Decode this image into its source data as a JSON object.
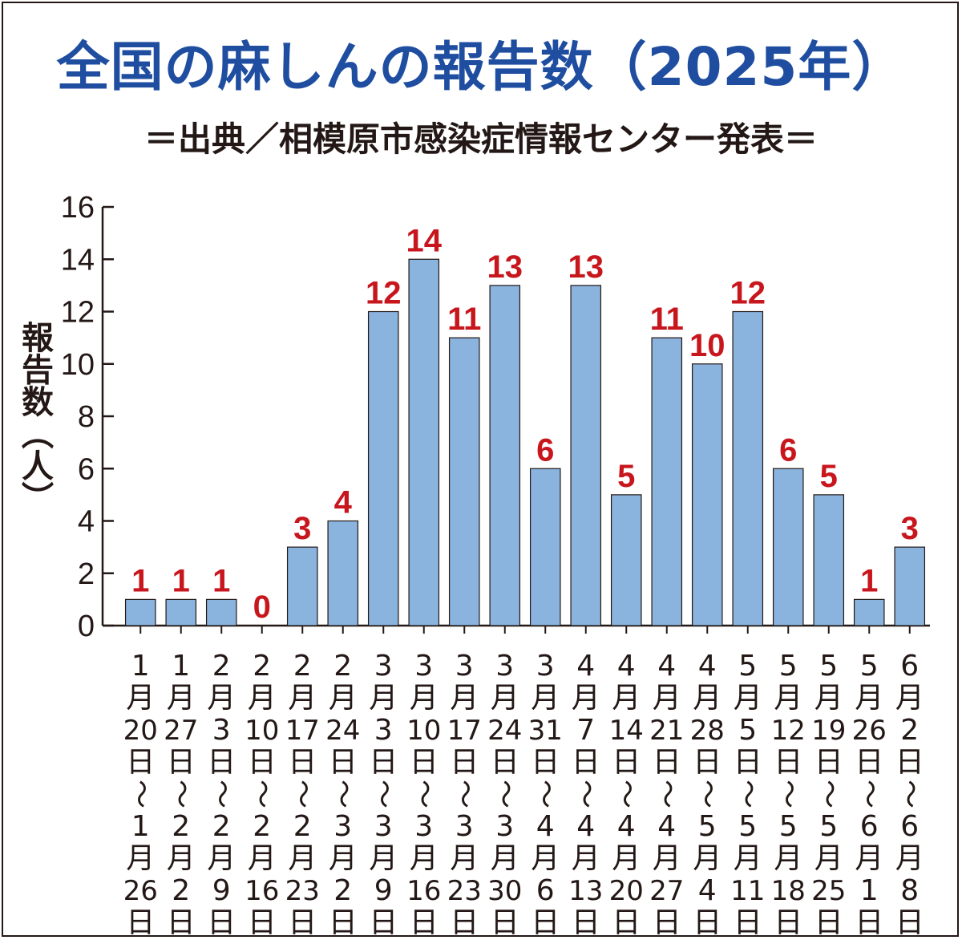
{
  "chart_data": {
    "type": "bar",
    "title": "全国の麻しんの報告数（2025年）",
    "subtitle": "＝出典／相模原市感染症情報センター発表＝",
    "ylabel": "報告数（人）",
    "xlabel": "",
    "ylim": [
      0,
      16
    ],
    "yticks": [
      0,
      2,
      4,
      6,
      8,
      10,
      12,
      14,
      16
    ],
    "categories": [
      "1月20日〜1月26日",
      "1月27日〜2月2日",
      "2月3日〜2月9日",
      "2月10日〜2月16日",
      "2月17日〜2月23日",
      "2月24日〜3月2日",
      "3月3日〜3月9日",
      "3月10日〜3月16日",
      "3月17日〜3月23日",
      "3月24日〜3月30日",
      "3月31日〜4月6日",
      "4月7日〜4月13日",
      "4月14日〜4月20日",
      "4月21日〜4月27日",
      "4月28日〜5月4日",
      "5月5日〜5月11日",
      "5月12日〜5月18日",
      "5月19日〜5月25日",
      "5月26日〜6月1日",
      "6月2日〜6月8日"
    ],
    "category_lines": [
      [
        "1",
        "月",
        "20",
        "日",
        "〜",
        "1",
        "月",
        "26",
        "日"
      ],
      [
        "1",
        "月",
        "27",
        "日",
        "〜",
        "2",
        "月",
        "2",
        "日"
      ],
      [
        "2",
        "月",
        "3",
        "日",
        "〜",
        "2",
        "月",
        "9",
        "日"
      ],
      [
        "2",
        "月",
        "10",
        "日",
        "〜",
        "2",
        "月",
        "16",
        "日"
      ],
      [
        "2",
        "月",
        "17",
        "日",
        "〜",
        "2",
        "月",
        "23",
        "日"
      ],
      [
        "2",
        "月",
        "24",
        "日",
        "〜",
        "3",
        "月",
        "2",
        "日"
      ],
      [
        "3",
        "月",
        "3",
        "日",
        "〜",
        "3",
        "月",
        "9",
        "日"
      ],
      [
        "3",
        "月",
        "10",
        "日",
        "〜",
        "3",
        "月",
        "16",
        "日"
      ],
      [
        "3",
        "月",
        "17",
        "日",
        "〜",
        "3",
        "月",
        "23",
        "日"
      ],
      [
        "3",
        "月",
        "24",
        "日",
        "〜",
        "3",
        "月",
        "30",
        "日"
      ],
      [
        "3",
        "月",
        "31",
        "日",
        "〜",
        "4",
        "月",
        "6",
        "日"
      ],
      [
        "4",
        "月",
        "7",
        "日",
        "〜",
        "4",
        "月",
        "13",
        "日"
      ],
      [
        "4",
        "月",
        "14",
        "日",
        "〜",
        "4",
        "月",
        "20",
        "日"
      ],
      [
        "4",
        "月",
        "21",
        "日",
        "〜",
        "4",
        "月",
        "27",
        "日"
      ],
      [
        "4",
        "月",
        "28",
        "日",
        "〜",
        "5",
        "月",
        "4",
        "日"
      ],
      [
        "5",
        "月",
        "5",
        "日",
        "〜",
        "5",
        "月",
        "11",
        "日"
      ],
      [
        "5",
        "月",
        "12",
        "日",
        "〜",
        "5",
        "月",
        "18",
        "日"
      ],
      [
        "5",
        "月",
        "19",
        "日",
        "〜",
        "5",
        "月",
        "25",
        "日"
      ],
      [
        "5",
        "月",
        "26",
        "日",
        "〜",
        "6",
        "月",
        "1",
        "日"
      ],
      [
        "6",
        "月",
        "2",
        "日",
        "〜",
        "6",
        "月",
        "8",
        "日"
      ]
    ],
    "values": [
      1,
      1,
      1,
      0,
      3,
      4,
      12,
      14,
      11,
      13,
      6,
      13,
      5,
      11,
      10,
      12,
      6,
      5,
      1,
      3
    ],
    "data_labels": [
      "1",
      "1",
      "1",
      "0",
      "3",
      "4",
      "12",
      "14",
      "11",
      "13",
      "6",
      "13",
      "5",
      "11",
      "10",
      "12",
      "6",
      "5",
      "1",
      "3"
    ],
    "grid": false,
    "legend": "none"
  },
  "colors": {
    "title": "#1f4ea1",
    "text": "#231815",
    "bar": "#8ab3de",
    "bar_edge": "#231815",
    "data_label": "#c8161d"
  }
}
